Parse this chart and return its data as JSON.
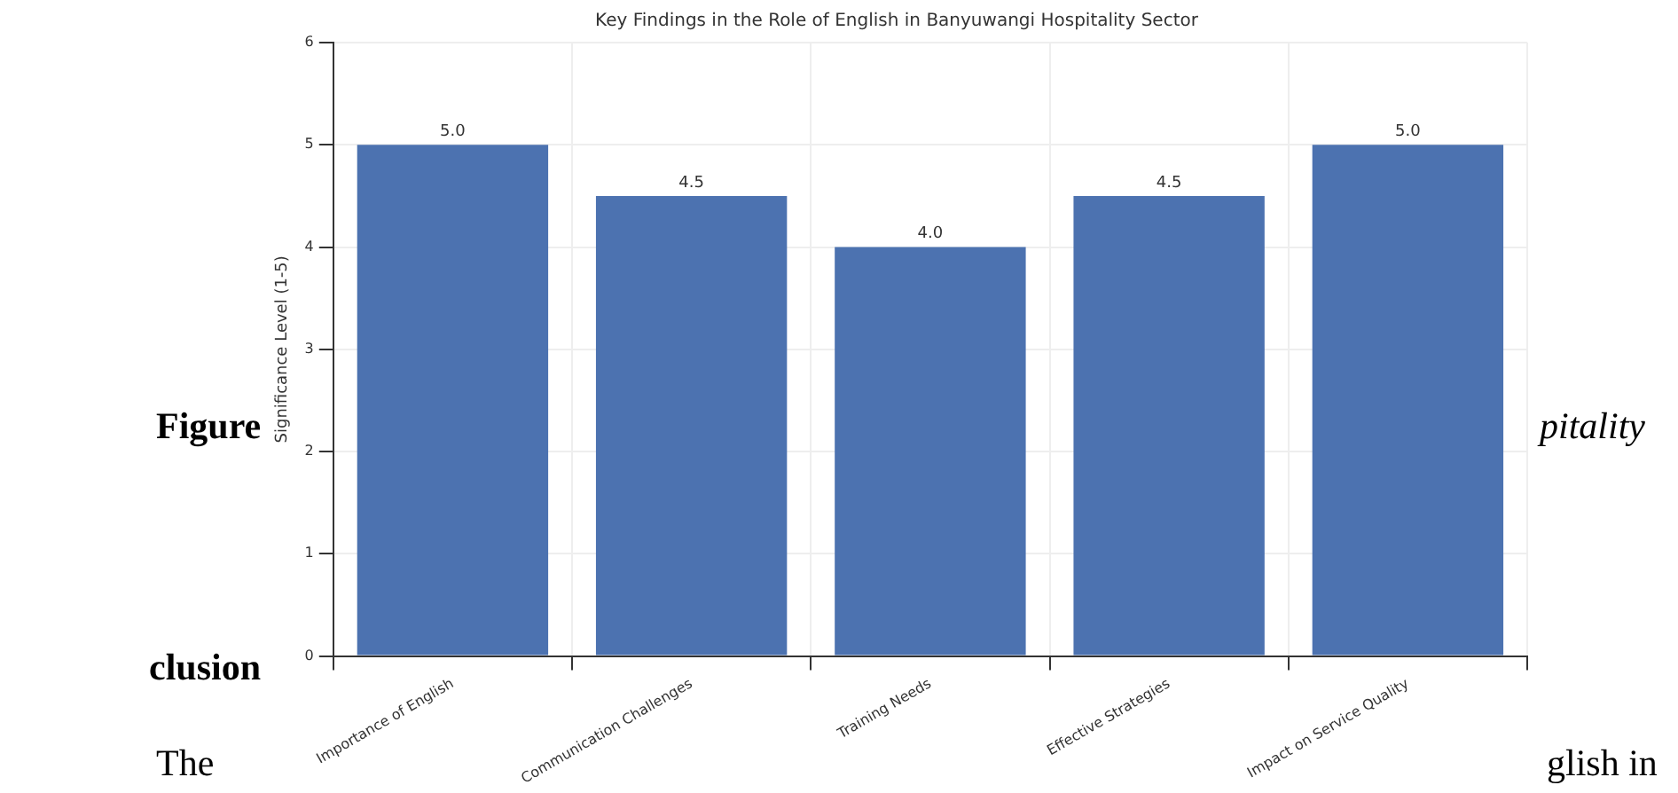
{
  "chart_data": {
    "type": "bar",
    "title": "Key Findings in the Role of English in Banyuwangi Hospitality Sector",
    "ylabel": "Significance Level (1-5)",
    "categories": [
      "Importance of English",
      "Communication Challenges",
      "Training Needs",
      "Effective Strategies",
      "Impact on Service Quality"
    ],
    "values": [
      5.0,
      4.5,
      4.0,
      4.5,
      5.0
    ],
    "value_labels": [
      "5.0",
      "4.5",
      "4.0",
      "4.5",
      "5.0"
    ],
    "color": "#4c72b0",
    "ylim": [
      0,
      6
    ],
    "yticks": [
      0,
      1,
      2,
      3,
      4,
      5,
      6
    ],
    "grid": true,
    "annotations": [
      "Figure",
      "pitality",
      "clusion",
      "The",
      "glish in"
    ]
  }
}
